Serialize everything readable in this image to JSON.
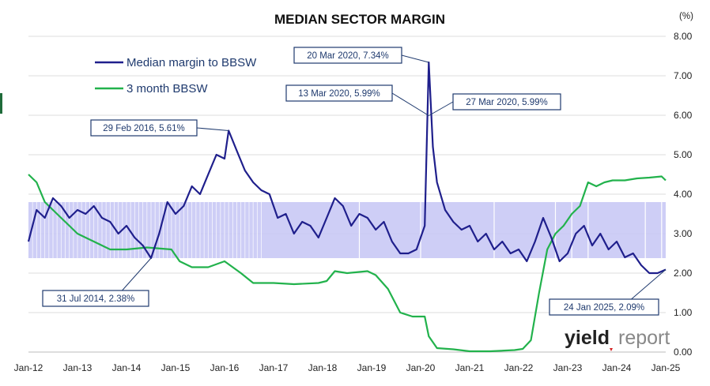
{
  "chart_data": {
    "type": "line",
    "title": "MEDIAN SECTOR MARGIN",
    "ylabel": "(%)",
    "ylim": [
      0,
      8
    ],
    "y_ticks": [
      "0.00",
      "1.00",
      "2.00",
      "3.00",
      "4.00",
      "5.00",
      "6.00",
      "7.00",
      "8.00"
    ],
    "x_ticks": [
      "Jan-12",
      "Jan-13",
      "Jan-14",
      "Jan-15",
      "Jan-16",
      "Jan-17",
      "Jan-18",
      "Jan-19",
      "Jan-20",
      "Jan-21",
      "Jan-22",
      "Jan-23",
      "Jan-24",
      "Jan-25"
    ],
    "x_range": [
      "2012-01",
      "2025-01"
    ],
    "band": {
      "y_low": 2.38,
      "y_high": 3.8,
      "x_start": "2012-01",
      "x_end": "2025-01",
      "color": "#c9c9f5"
    },
    "series": [
      {
        "name": "Median margin to BBSW",
        "color": "#1f1f8c",
        "points": [
          [
            "2012-01",
            2.8
          ],
          [
            "2012-03",
            3.6
          ],
          [
            "2012-05",
            3.4
          ],
          [
            "2012-07",
            3.9
          ],
          [
            "2012-09",
            3.7
          ],
          [
            "2012-11",
            3.4
          ],
          [
            "2013-01",
            3.6
          ],
          [
            "2013-03",
            3.5
          ],
          [
            "2013-05",
            3.7
          ],
          [
            "2013-07",
            3.4
          ],
          [
            "2013-09",
            3.3
          ],
          [
            "2013-11",
            3.0
          ],
          [
            "2014-01",
            3.2
          ],
          [
            "2014-03",
            2.9
          ],
          [
            "2014-05",
            2.7
          ],
          [
            "2014-07",
            2.38
          ],
          [
            "2014-09",
            3.0
          ],
          [
            "2014-11",
            3.8
          ],
          [
            "2015-01",
            3.5
          ],
          [
            "2015-03",
            3.7
          ],
          [
            "2015-05",
            4.2
          ],
          [
            "2015-07",
            4.0
          ],
          [
            "2015-09",
            4.5
          ],
          [
            "2015-11",
            5.0
          ],
          [
            "2016-01",
            4.9
          ],
          [
            "2016-02",
            5.61
          ],
          [
            "2016-04",
            5.1
          ],
          [
            "2016-06",
            4.6
          ],
          [
            "2016-08",
            4.3
          ],
          [
            "2016-10",
            4.1
          ],
          [
            "2016-12",
            4.0
          ],
          [
            "2017-02",
            3.4
          ],
          [
            "2017-04",
            3.5
          ],
          [
            "2017-06",
            3.0
          ],
          [
            "2017-08",
            3.3
          ],
          [
            "2017-10",
            3.2
          ],
          [
            "2017-12",
            2.9
          ],
          [
            "2018-02",
            3.4
          ],
          [
            "2018-04",
            3.9
          ],
          [
            "2018-06",
            3.7
          ],
          [
            "2018-08",
            3.2
          ],
          [
            "2018-10",
            3.5
          ],
          [
            "2018-12",
            3.4
          ],
          [
            "2019-02",
            3.1
          ],
          [
            "2019-04",
            3.3
          ],
          [
            "2019-06",
            2.8
          ],
          [
            "2019-08",
            2.5
          ],
          [
            "2019-10",
            2.5
          ],
          [
            "2019-12",
            2.6
          ],
          [
            "2020-02",
            3.2
          ],
          [
            "2020-03",
            7.34
          ],
          [
            "2020-04",
            5.2
          ],
          [
            "2020-05",
            4.3
          ],
          [
            "2020-07",
            3.6
          ],
          [
            "2020-09",
            3.3
          ],
          [
            "2020-11",
            3.1
          ],
          [
            "2021-01",
            3.2
          ],
          [
            "2021-03",
            2.8
          ],
          [
            "2021-05",
            3.0
          ],
          [
            "2021-07",
            2.6
          ],
          [
            "2021-09",
            2.8
          ],
          [
            "2021-11",
            2.5
          ],
          [
            "2022-01",
            2.6
          ],
          [
            "2022-03",
            2.3
          ],
          [
            "2022-05",
            2.8
          ],
          [
            "2022-07",
            3.4
          ],
          [
            "2022-09",
            2.9
          ],
          [
            "2022-11",
            2.3
          ],
          [
            "2023-01",
            2.5
          ],
          [
            "2023-03",
            3.0
          ],
          [
            "2023-05",
            3.2
          ],
          [
            "2023-07",
            2.7
          ],
          [
            "2023-09",
            3.0
          ],
          [
            "2023-11",
            2.6
          ],
          [
            "2024-01",
            2.8
          ],
          [
            "2024-03",
            2.4
          ],
          [
            "2024-05",
            2.5
          ],
          [
            "2024-07",
            2.2
          ],
          [
            "2024-09",
            2.0
          ],
          [
            "2024-11",
            2.0
          ],
          [
            "2025-01",
            2.09
          ]
        ]
      },
      {
        "name": "3 month BBSW",
        "color": "#22b24c",
        "points": [
          [
            "2012-01",
            4.5
          ],
          [
            "2012-03",
            4.3
          ],
          [
            "2012-05",
            3.8
          ],
          [
            "2012-07",
            3.6
          ],
          [
            "2012-09",
            3.4
          ],
          [
            "2012-11",
            3.2
          ],
          [
            "2013-01",
            3.0
          ],
          [
            "2013-03",
            2.9
          ],
          [
            "2013-05",
            2.8
          ],
          [
            "2013-07",
            2.7
          ],
          [
            "2013-09",
            2.6
          ],
          [
            "2013-11",
            2.6
          ],
          [
            "2014-01",
            2.6
          ],
          [
            "2014-06",
            2.65
          ],
          [
            "2014-12",
            2.6
          ],
          [
            "2015-02",
            2.3
          ],
          [
            "2015-05",
            2.15
          ],
          [
            "2015-09",
            2.15
          ],
          [
            "2016-01",
            2.3
          ],
          [
            "2016-05",
            2.0
          ],
          [
            "2016-08",
            1.75
          ],
          [
            "2017-01",
            1.75
          ],
          [
            "2017-06",
            1.72
          ],
          [
            "2017-12",
            1.75
          ],
          [
            "2018-02",
            1.8
          ],
          [
            "2018-04",
            2.05
          ],
          [
            "2018-07",
            2.0
          ],
          [
            "2018-12",
            2.05
          ],
          [
            "2019-02",
            1.95
          ],
          [
            "2019-05",
            1.6
          ],
          [
            "2019-08",
            1.0
          ],
          [
            "2019-11",
            0.9
          ],
          [
            "2020-02",
            0.9
          ],
          [
            "2020-03",
            0.4
          ],
          [
            "2020-05",
            0.1
          ],
          [
            "2020-09",
            0.07
          ],
          [
            "2021-01",
            0.02
          ],
          [
            "2021-06",
            0.02
          ],
          [
            "2021-12",
            0.05
          ],
          [
            "2022-02",
            0.08
          ],
          [
            "2022-04",
            0.3
          ],
          [
            "2022-06",
            1.5
          ],
          [
            "2022-08",
            2.6
          ],
          [
            "2022-10",
            3.0
          ],
          [
            "2022-12",
            3.2
          ],
          [
            "2023-02",
            3.5
          ],
          [
            "2023-04",
            3.7
          ],
          [
            "2023-06",
            4.3
          ],
          [
            "2023-08",
            4.2
          ],
          [
            "2023-10",
            4.3
          ],
          [
            "2023-12",
            4.35
          ],
          [
            "2024-03",
            4.35
          ],
          [
            "2024-06",
            4.4
          ],
          [
            "2024-09",
            4.42
          ],
          [
            "2024-12",
            4.45
          ],
          [
            "2025-01",
            4.35
          ]
        ]
      }
    ],
    "annotations": [
      {
        "text": "20 Mar 2020, 7.34%",
        "x": "2020-03",
        "y": 7.34
      },
      {
        "text": "13 Mar 2020, 5.99%",
        "x": "2020-03",
        "y": 5.99
      },
      {
        "text": "27 Mar 2020, 5.99%",
        "x": "2020-03",
        "y": 5.99
      },
      {
        "text": "29 Feb 2016, 5.61%",
        "x": "2016-02",
        "y": 5.61
      },
      {
        "text": "31 Jul 2014, 2.38%",
        "x": "2014-07",
        "y": 2.38
      },
      {
        "text": "24 Jan 2025, 2.09%",
        "x": "2025-01",
        "y": 2.09
      }
    ],
    "grid": true,
    "legend_position": "top-left"
  },
  "watermark": {
    "text_bold": "yield",
    "text_light": "report"
  }
}
